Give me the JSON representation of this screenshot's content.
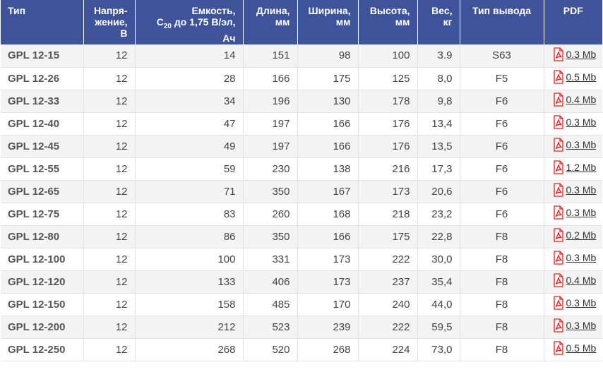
{
  "colors": {
    "header_bg": "#3f539b",
    "header_text": "#ffffff",
    "row_odd": "#f3f3f3",
    "row_even": "#ffffff",
    "pdf_icon": "#e02020"
  },
  "header": {
    "type": "Тип",
    "voltage": [
      "Напря-",
      "жение,",
      "В"
    ],
    "capacity_line1": "Емкость,",
    "capacity_c": "C",
    "capacity_sub": "20",
    "capacity_rest": " до 1,75 В/эл,",
    "capacity_line3": "Ач",
    "length": [
      "Длина,",
      "мм"
    ],
    "width": [
      "Ширина,",
      "мм"
    ],
    "height": [
      "Высота,",
      "мм"
    ],
    "weight": [
      "Вес,",
      "кг"
    ],
    "terminal": "Тип вывода",
    "pdf": "PDF"
  },
  "pdf_icon_name": "pdf-file-icon",
  "rows": [
    {
      "type": "GPL 12-15",
      "voltage": "12",
      "capacity": "14",
      "length": "151",
      "width": "98",
      "height": "100",
      "weight": "3.9",
      "terminal": "S63",
      "pdf": "0.3 Mb"
    },
    {
      "type": "GPL 12-26",
      "voltage": "12",
      "capacity": "28",
      "length": "166",
      "width": "175",
      "height": "125",
      "weight": "8,0",
      "terminal": "F5",
      "pdf": "0.5 Mb"
    },
    {
      "type": "GPL 12-33",
      "voltage": "12",
      "capacity": "34",
      "length": "196",
      "width": "130",
      "height": "178",
      "weight": "9,8",
      "terminal": "F6",
      "pdf": "0.4 Mb"
    },
    {
      "type": "GPL 12-40",
      "voltage": "12",
      "capacity": "47",
      "length": "197",
      "width": "166",
      "height": "176",
      "weight": "13,4",
      "terminal": "F6",
      "pdf": "0.3 Mb"
    },
    {
      "type": "GPL 12-45",
      "voltage": "12",
      "capacity": "49",
      "length": "197",
      "width": "166",
      "height": "176",
      "weight": "13,5",
      "terminal": "F6",
      "pdf": "0.3 Mb"
    },
    {
      "type": "GPL 12-55",
      "voltage": "12",
      "capacity": "59",
      "length": "230",
      "width": "138",
      "height": "216",
      "weight": "17,3",
      "terminal": "F6",
      "pdf": "1.2 Mb"
    },
    {
      "type": "GPL 12-65",
      "voltage": "12",
      "capacity": "71",
      "length": "350",
      "width": "167",
      "height": "173",
      "weight": "20,6",
      "terminal": "F6",
      "pdf": "0.3 Mb"
    },
    {
      "type": "GPL 12-75",
      "voltage": "12",
      "capacity": "83",
      "length": "260",
      "width": "168",
      "height": "218",
      "weight": "23,2",
      "terminal": "F6",
      "pdf": "0.3 Mb"
    },
    {
      "type": "GPL 12-80",
      "voltage": "12",
      "capacity": "86",
      "length": "350",
      "width": "166",
      "height": "175",
      "weight": "22,8",
      "terminal": "F8",
      "pdf": "0.2 Mb"
    },
    {
      "type": "GPL 12-100",
      "voltage": "12",
      "capacity": "100",
      "length": "331",
      "width": "173",
      "height": "222",
      "weight": "30,0",
      "terminal": "F8",
      "pdf": "0.3 Mb"
    },
    {
      "type": "GPL 12-120",
      "voltage": "12",
      "capacity": "133",
      "length": "406",
      "width": "173",
      "height": "237",
      "weight": "35,4",
      "terminal": "F8",
      "pdf": "0.4 Mb"
    },
    {
      "type": "GPL 12-150",
      "voltage": "12",
      "capacity": "158",
      "length": "485",
      "width": "170",
      "height": "240",
      "weight": "44,0",
      "terminal": "F8",
      "pdf": "0.3 Mb"
    },
    {
      "type": "GPL 12-200",
      "voltage": "12",
      "capacity": "212",
      "length": "523",
      "width": "239",
      "height": "222",
      "weight": "59,5",
      "terminal": "F8",
      "pdf": "0.3 Mb"
    },
    {
      "type": "GPL 12-250",
      "voltage": "12",
      "capacity": "268",
      "length": "520",
      "width": "268",
      "height": "224",
      "weight": "73,0",
      "terminal": "F8",
      "pdf": "0.5 Mb"
    }
  ]
}
